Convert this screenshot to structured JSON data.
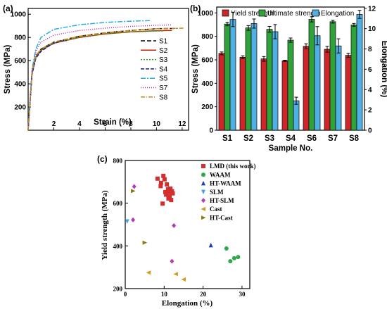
{
  "chart_data": [
    {
      "panel_label": "(a)",
      "type": "line",
      "xlabel": "Strain (%)",
      "ylabel": "Stress (MPa)",
      "xlim": [
        0,
        12.5
      ],
      "ylim": [
        0,
        1050
      ],
      "xticks": [
        2,
        4,
        6,
        8,
        10,
        12
      ],
      "yticks": [
        200,
        400,
        600,
        800,
        1000
      ],
      "series": [
        {
          "name": "S1",
          "color": "#000000",
          "dash": "6,3",
          "points": [
            [
              0,
              0
            ],
            [
              0.3,
              500
            ],
            [
              0.6,
              640
            ],
            [
              1,
              700
            ],
            [
              2,
              760
            ],
            [
              4,
              810
            ],
            [
              6,
              840
            ],
            [
              8,
              860
            ],
            [
              10,
              875
            ],
            [
              11.6,
              878
            ]
          ]
        },
        {
          "name": "S2",
          "color": "#cc2200",
          "dash": "",
          "points": [
            [
              0,
              0
            ],
            [
              0.3,
              490
            ],
            [
              0.6,
              630
            ],
            [
              1,
              690
            ],
            [
              2,
              750
            ],
            [
              4,
              800
            ],
            [
              6,
              830
            ],
            [
              8,
              848
            ],
            [
              10,
              858
            ],
            [
              11.2,
              860
            ]
          ]
        },
        {
          "name": "S3",
          "color": "#2aa52a",
          "dash": "2,2",
          "points": [
            [
              0,
              0
            ],
            [
              0.3,
              490
            ],
            [
              0.6,
              630
            ],
            [
              1,
              690
            ],
            [
              2,
              752
            ],
            [
              4,
              800
            ],
            [
              6,
              832
            ],
            [
              8,
              848
            ],
            [
              10,
              855
            ],
            [
              10.6,
              856
            ]
          ]
        },
        {
          "name": "S4",
          "color": "#1c1c8c",
          "dash": "5,2",
          "points": [
            [
              0,
              0
            ],
            [
              0.3,
              480
            ],
            [
              0.6,
              620
            ],
            [
              1,
              680
            ],
            [
              1.8,
              740
            ],
            [
              2.6,
              770
            ],
            [
              3,
              774
            ]
          ]
        },
        {
          "name": "S5",
          "color": "#29aee0",
          "dash": "7,2,2,2",
          "points": [
            [
              0,
              0
            ],
            [
              0.3,
              520
            ],
            [
              0.6,
              700
            ],
            [
              1,
              800
            ],
            [
              2,
              870
            ],
            [
              4,
              910
            ],
            [
              6,
              930
            ],
            [
              8,
              940
            ],
            [
              9.5,
              945
            ]
          ]
        },
        {
          "name": "S7",
          "color": "#b0279e",
          "dash": "1,2",
          "points": [
            [
              0,
              0
            ],
            [
              0.3,
              510
            ],
            [
              0.6,
              680
            ],
            [
              1,
              760
            ],
            [
              2,
              820
            ],
            [
              4,
              860
            ],
            [
              6,
              880
            ],
            [
              8,
              895
            ],
            [
              10,
              905
            ],
            [
              11.2,
              908
            ]
          ]
        },
        {
          "name": "S8",
          "color": "#c98a14",
          "dash": "6,2,1,2",
          "points": [
            [
              0,
              0
            ],
            [
              0.3,
              500
            ],
            [
              0.6,
              640
            ],
            [
              1,
              700
            ],
            [
              2,
              760
            ],
            [
              4,
              810
            ],
            [
              6,
              840
            ],
            [
              8,
              860
            ],
            [
              10,
              875
            ],
            [
              12.2,
              880
            ]
          ]
        }
      ]
    },
    {
      "panel_label": "(b)",
      "type": "bar",
      "xlabel": "Sample No.",
      "ylabel": "Stress (MPa)",
      "y2label": "Elongation (%)",
      "ylim": [
        0,
        1050
      ],
      "y2lim": [
        0,
        12.125
      ],
      "yticks": [
        0,
        200,
        400,
        600,
        800,
        1000
      ],
      "y2ticks": [
        0,
        2,
        4,
        6,
        8,
        10,
        12
      ],
      "categories": [
        "S1",
        "S2",
        "S3",
        "S4",
        "S6",
        "S7",
        "S8"
      ],
      "series": [
        {
          "name": "Yield strength",
          "axis": "left",
          "color": "#d0262b",
          "values": [
            655,
            622,
            608,
            592,
            715,
            690,
            638
          ],
          "errors": [
            12,
            12,
            20,
            5,
            22,
            25,
            18
          ]
        },
        {
          "name": "Ultimate strength",
          "axis": "left",
          "color": "#2fa33a",
          "values": [
            905,
            872,
            860,
            768,
            945,
            925,
            898
          ],
          "errors": [
            15,
            20,
            25,
            18,
            22,
            12,
            12
          ]
        },
        {
          "name": "Elongation",
          "axis": "right",
          "color": "#4fb1e3",
          "values": [
            10.9,
            10.5,
            9.7,
            2.9,
            9.3,
            8.3,
            11.4
          ],
          "errors": [
            0.7,
            0.45,
            0.7,
            0.35,
            0.9,
            0.7,
            0.4
          ]
        }
      ],
      "legend": "top"
    },
    {
      "panel_label": "(c)",
      "type": "scatter",
      "xlabel": "Elongation (%)",
      "ylabel": "Yield strength (MPa)",
      "xlim": [
        0,
        32
      ],
      "ylim": [
        200,
        800
      ],
      "xticks": [
        0,
        10,
        20,
        30
      ],
      "yticks": [
        200,
        400,
        600,
        800
      ],
      "legend": "top-right",
      "series": [
        {
          "name": "LMD   (this work)",
          "marker": "square",
          "color": "#d32f2f",
          "points": [
            [
              8.3,
              715
            ],
            [
              9.2,
              695
            ],
            [
              9.6,
              598
            ],
            [
              9.8,
              728
            ],
            [
              10.1,
              712
            ],
            [
              10.5,
              640
            ],
            [
              10.7,
              688
            ],
            [
              11,
              665
            ],
            [
              11.1,
              622
            ],
            [
              11.2,
              652
            ],
            [
              11.4,
              632
            ],
            [
              11.6,
              668
            ],
            [
              11.8,
              615
            ],
            [
              12,
              656
            ],
            [
              12.2,
              646
            ],
            [
              9.1,
              680
            ],
            [
              10.3,
              652
            ]
          ]
        },
        {
          "name": "WAAM",
          "marker": "circle",
          "color": "#2ea64a",
          "points": [
            [
              26,
              388
            ],
            [
              27,
              328
            ],
            [
              28,
              342
            ],
            [
              29,
              348
            ]
          ]
        },
        {
          "name": "HT-WAAM",
          "marker": "triangle-up",
          "color": "#1f3fa8",
          "points": [
            [
              22,
              403
            ]
          ]
        },
        {
          "name": "SLM",
          "marker": "triangle-down",
          "color": "#4a9fe0",
          "points": [
            [
              0.5,
              515
            ]
          ]
        },
        {
          "name": "HT-SLM",
          "marker": "diamond",
          "color": "#b03bb6",
          "points": [
            [
              2.3,
              678
            ],
            [
              2,
              522
            ],
            [
              12,
              328
            ],
            [
              12.5,
              495
            ]
          ]
        },
        {
          "name": "Cast",
          "marker": "triangle-left",
          "color": "#d39a1e",
          "points": [
            [
              6,
              275
            ],
            [
              13,
              268
            ],
            [
              15,
              243
            ]
          ]
        },
        {
          "name": "HT-Cast",
          "marker": "triangle-right",
          "color": "#8a7a12",
          "points": [
            [
              2,
              657
            ],
            [
              5,
              415
            ]
          ]
        }
      ]
    }
  ]
}
